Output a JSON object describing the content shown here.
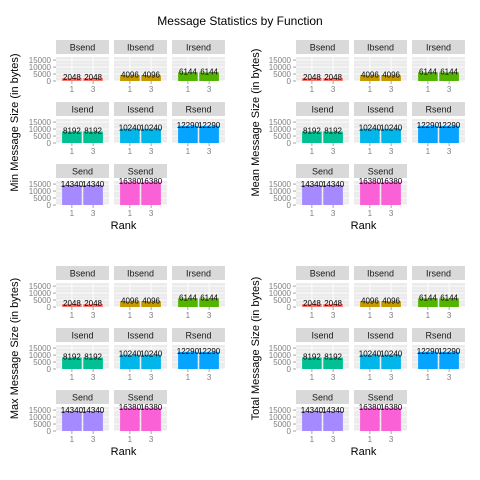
{
  "title": "Message Statistics by Function",
  "colors": {
    "panel_bg": "#EBEBEB",
    "strip_bg": "#D9D9D9",
    "grid": "#FFFFFF",
    "axis_text": "#7F7F7F",
    "label_text": "#000000"
  },
  "functions": [
    {
      "name": "Bsend",
      "value": 2048,
      "color": "#F8766D"
    },
    {
      "name": "Ibsend",
      "value": 4096,
      "color": "#C49A00"
    },
    {
      "name": "Irsend",
      "value": 6144,
      "color": "#53B400"
    },
    {
      "name": "Isend",
      "value": 8192,
      "color": "#00C094"
    },
    {
      "name": "Issend",
      "value": 10240,
      "color": "#00B6EB"
    },
    {
      "name": "Rsend",
      "value": 12290,
      "color": "#06A4FF"
    },
    {
      "name": "Send",
      "value": 14340,
      "color": "#A58AFF"
    },
    {
      "name": "Ssend",
      "value": 16380,
      "color": "#FB61D7"
    }
  ],
  "chart_data": [
    {
      "type": "bar",
      "title": "Message Statistics by Function",
      "xlabel": "Rank",
      "ylabel": "Min Message Size (in bytes)",
      "categories": [
        "1",
        "3"
      ],
      "yticks": [
        0,
        5000,
        10000,
        15000
      ],
      "ylim": [
        0,
        17200
      ],
      "grid": true,
      "facets": [
        {
          "name": "Bsend",
          "values": [
            2048,
            2048
          ],
          "labels": [
            "2048",
            "2048"
          ]
        },
        {
          "name": "Ibsend",
          "values": [
            4096,
            4096
          ],
          "labels": [
            "4096",
            "4096"
          ]
        },
        {
          "name": "Irsend",
          "values": [
            6144,
            6144
          ],
          "labels": [
            "6144",
            "6144"
          ]
        },
        {
          "name": "Isend",
          "values": [
            8192,
            8192
          ],
          "labels": [
            "8192",
            "8192"
          ]
        },
        {
          "name": "Issend",
          "values": [
            10240,
            10240
          ],
          "labels": [
            "10240",
            "10240"
          ]
        },
        {
          "name": "Rsend",
          "values": [
            12290,
            12290
          ],
          "labels": [
            "12290",
            "12290"
          ]
        },
        {
          "name": "Send",
          "values": [
            14340,
            14340
          ],
          "labels": [
            "14340",
            "14340"
          ]
        },
        {
          "name": "Ssend",
          "values": [
            16380,
            16380
          ],
          "labels": [
            "16380",
            "16380"
          ]
        }
      ]
    },
    {
      "type": "bar",
      "xlabel": "Rank",
      "ylabel": "Mean Message Size (in bytes)",
      "categories": [
        "1",
        "3"
      ],
      "yticks": [
        0,
        5000,
        10000,
        15000
      ],
      "ylim": [
        0,
        17200
      ],
      "grid": true,
      "facets": [
        {
          "name": "Bsend",
          "values": [
            2048,
            2048
          ],
          "labels": [
            "2048",
            "2048"
          ]
        },
        {
          "name": "Ibsend",
          "values": [
            4096,
            4096
          ],
          "labels": [
            "4096",
            "4096"
          ]
        },
        {
          "name": "Irsend",
          "values": [
            6144,
            6144
          ],
          "labels": [
            "6144",
            "6144"
          ]
        },
        {
          "name": "Isend",
          "values": [
            8192,
            8192
          ],
          "labels": [
            "8192",
            "8192"
          ]
        },
        {
          "name": "Issend",
          "values": [
            10240,
            10240
          ],
          "labels": [
            "10240",
            "10240"
          ]
        },
        {
          "name": "Rsend",
          "values": [
            12290,
            12290
          ],
          "labels": [
            "12290",
            "12290"
          ]
        },
        {
          "name": "Send",
          "values": [
            14340,
            14340
          ],
          "labels": [
            "14340",
            "14340"
          ]
        },
        {
          "name": "Ssend",
          "values": [
            16380,
            16380
          ],
          "labels": [
            "16380",
            "16380"
          ]
        }
      ]
    },
    {
      "type": "bar",
      "xlabel": "Rank",
      "ylabel": "Max Message Size (in bytes)",
      "categories": [
        "1",
        "3"
      ],
      "yticks": [
        0,
        5000,
        10000,
        15000
      ],
      "ylim": [
        0,
        17200
      ],
      "grid": true,
      "facets": [
        {
          "name": "Bsend",
          "values": [
            2048,
            2048
          ],
          "labels": [
            "2048",
            "2048"
          ]
        },
        {
          "name": "Ibsend",
          "values": [
            4096,
            4096
          ],
          "labels": [
            "4096",
            "4096"
          ]
        },
        {
          "name": "Irsend",
          "values": [
            6144,
            6144
          ],
          "labels": [
            "6144",
            "6144"
          ]
        },
        {
          "name": "Isend",
          "values": [
            8192,
            8192
          ],
          "labels": [
            "8192",
            "8192"
          ]
        },
        {
          "name": "Issend",
          "values": [
            10240,
            10240
          ],
          "labels": [
            "10240",
            "10240"
          ]
        },
        {
          "name": "Rsend",
          "values": [
            12290,
            12290
          ],
          "labels": [
            "12290",
            "12290"
          ]
        },
        {
          "name": "Send",
          "values": [
            14340,
            14340
          ],
          "labels": [
            "14340",
            "14340"
          ]
        },
        {
          "name": "Ssend",
          "values": [
            16380,
            16380
          ],
          "labels": [
            "16380",
            "16380"
          ]
        }
      ]
    },
    {
      "type": "bar",
      "xlabel": "Rank",
      "ylabel": "Total Message Size (in bytes)",
      "categories": [
        "1",
        "3"
      ],
      "yticks": [
        0,
        5000,
        10000,
        15000
      ],
      "ylim": [
        0,
        17200
      ],
      "grid": true,
      "facets": [
        {
          "name": "Bsend",
          "values": [
            2048,
            2048
          ],
          "labels": [
            "2048",
            "2048"
          ]
        },
        {
          "name": "Ibsend",
          "values": [
            4096,
            4096
          ],
          "labels": [
            "4096",
            "4096"
          ]
        },
        {
          "name": "Irsend",
          "values": [
            6144,
            6144
          ],
          "labels": [
            "6144",
            "6144"
          ]
        },
        {
          "name": "Isend",
          "values": [
            8192,
            8192
          ],
          "labels": [
            "8192",
            "8192"
          ]
        },
        {
          "name": "Issend",
          "values": [
            10240,
            10240
          ],
          "labels": [
            "10240",
            "10240"
          ]
        },
        {
          "name": "Rsend",
          "values": [
            12290,
            12290
          ],
          "labels": [
            "12290",
            "12290"
          ]
        },
        {
          "name": "Send",
          "values": [
            14340,
            14340
          ],
          "labels": [
            "14340",
            "14340"
          ]
        },
        {
          "name": "Ssend",
          "values": [
            16380,
            16380
          ],
          "labels": [
            "16380",
            "16380"
          ]
        }
      ]
    }
  ]
}
